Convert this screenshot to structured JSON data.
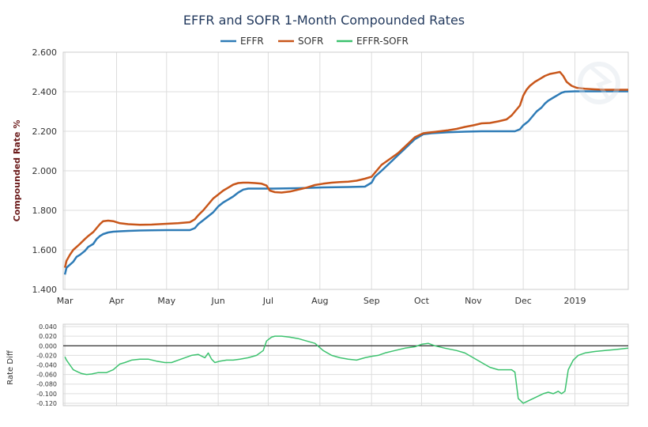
{
  "chart_data": [
    {
      "type": "line",
      "title": "EFFR and SOFR 1-Month Compounded Rates",
      "ylabel": "Compounded Rate %",
      "xlabel": "",
      "ylim": [
        1.4,
        2.6
      ],
      "yticks": [
        "1.400",
        "1.600",
        "1.800",
        "2.000",
        "2.200",
        "2.400",
        "2.600"
      ],
      "ytick_values": [
        1.4,
        1.6,
        1.8,
        2.0,
        2.2,
        2.4,
        2.6
      ],
      "xtick_labels": [
        "Mar",
        "Apr",
        "May",
        "Jun",
        "Jul",
        "Aug",
        "Sep",
        "Oct",
        "Nov",
        "Dec",
        "2019"
      ],
      "xtick_days": [
        0,
        31,
        61,
        92,
        122,
        153,
        184,
        214,
        245,
        275,
        306
      ],
      "xlim_days": [
        -1,
        338
      ],
      "legend_position": "top-center",
      "series": [
        {
          "name": "EFFR",
          "color": "#2e7bb6",
          "x": [
            0,
            1,
            3,
            5,
            7,
            9,
            12,
            14,
            17,
            19,
            21,
            23,
            26,
            29,
            33,
            38,
            45,
            52,
            61,
            68,
            75,
            78,
            80,
            83,
            86,
            89,
            92,
            95,
            98,
            101,
            104,
            107,
            110,
            114,
            118,
            121,
            125,
            140,
            155,
            170,
            180,
            184,
            186,
            190,
            195,
            200,
            205,
            210,
            215,
            220,
            230,
            240,
            250,
            260,
            268,
            270,
            273,
            275,
            278,
            281,
            283,
            286,
            288,
            290,
            293,
            296,
            298,
            300,
            306,
            320,
            338
          ],
          "y": [
            1.475,
            1.51,
            1.525,
            1.54,
            1.565,
            1.575,
            1.595,
            1.615,
            1.63,
            1.655,
            1.67,
            1.68,
            1.688,
            1.692,
            1.694,
            1.696,
            1.698,
            1.699,
            1.7,
            1.7,
            1.7,
            1.71,
            1.73,
            1.75,
            1.77,
            1.79,
            1.82,
            1.84,
            1.855,
            1.87,
            1.89,
            1.905,
            1.91,
            1.91,
            1.91,
            1.91,
            1.91,
            1.912,
            1.916,
            1.918,
            1.92,
            1.94,
            1.97,
            2.0,
            2.04,
            2.08,
            2.12,
            2.16,
            2.185,
            2.19,
            2.195,
            2.198,
            2.2,
            2.2,
            2.2,
            2.2,
            2.21,
            2.23,
            2.25,
            2.28,
            2.3,
            2.32,
            2.34,
            2.355,
            2.37,
            2.385,
            2.395,
            2.4,
            2.402,
            2.402,
            2.402
          ]
        },
        {
          "name": "SOFR",
          "color": "#c8561a",
          "x": [
            0,
            1,
            3,
            5,
            7,
            9,
            12,
            14,
            17,
            19,
            21,
            23,
            26,
            29,
            33,
            38,
            45,
            52,
            61,
            68,
            75,
            78,
            80,
            83,
            86,
            89,
            92,
            95,
            98,
            101,
            104,
            107,
            110,
            114,
            118,
            121,
            123,
            126,
            130,
            135,
            140,
            145,
            150,
            155,
            160,
            165,
            170,
            175,
            180,
            184,
            186,
            190,
            195,
            200,
            205,
            210,
            215,
            220,
            225,
            230,
            235,
            240,
            245,
            250,
            255,
            260,
            265,
            268,
            270,
            273,
            275,
            277,
            279,
            282,
            285,
            288,
            291,
            294,
            297,
            299,
            301,
            304,
            307,
            312,
            318,
            324,
            330,
            338
          ],
          "y": [
            1.51,
            1.545,
            1.575,
            1.6,
            1.615,
            1.63,
            1.655,
            1.67,
            1.69,
            1.71,
            1.73,
            1.745,
            1.748,
            1.745,
            1.735,
            1.73,
            1.727,
            1.728,
            1.732,
            1.735,
            1.74,
            1.755,
            1.775,
            1.8,
            1.83,
            1.86,
            1.88,
            1.9,
            1.915,
            1.93,
            1.938,
            1.94,
            1.94,
            1.938,
            1.935,
            1.925,
            1.9,
            1.892,
            1.89,
            1.895,
            1.905,
            1.915,
            1.928,
            1.935,
            1.94,
            1.943,
            1.945,
            1.95,
            1.96,
            1.97,
            1.99,
            2.03,
            2.06,
            2.09,
            2.13,
            2.17,
            2.19,
            2.195,
            2.2,
            2.205,
            2.212,
            2.222,
            2.23,
            2.24,
            2.242,
            2.25,
            2.26,
            2.28,
            2.3,
            2.33,
            2.38,
            2.41,
            2.43,
            2.45,
            2.465,
            2.48,
            2.49,
            2.495,
            2.5,
            2.48,
            2.45,
            2.43,
            2.42,
            2.415,
            2.412,
            2.41,
            2.41,
            2.41
          ]
        }
      ]
    },
    {
      "type": "line",
      "title": "",
      "ylabel": "Rate Diff",
      "ylim": [
        -0.125,
        0.045
      ],
      "yticks": [
        "0.040",
        "0.020",
        "0.000",
        "-0.020",
        "-0.040",
        "-0.060",
        "-0.080",
        "-0.100",
        "-0.120"
      ],
      "ytick_values": [
        0.04,
        0.02,
        0.0,
        -0.02,
        -0.04,
        -0.06,
        -0.08,
        -0.1,
        -0.12
      ],
      "zero_line": true,
      "series": [
        {
          "name": "EFFR-SOFR",
          "color": "#3cc26e",
          "x": [
            0,
            1,
            3,
            5,
            8,
            10,
            13,
            16,
            20,
            25,
            29,
            33,
            36,
            40,
            45,
            50,
            55,
            60,
            64,
            68,
            72,
            76,
            80,
            84,
            86,
            88,
            90,
            93,
            97,
            101,
            105,
            110,
            115,
            119,
            121,
            124,
            126,
            130,
            135,
            140,
            145,
            150,
            155,
            160,
            165,
            170,
            175,
            180,
            184,
            188,
            192,
            198,
            204,
            210,
            214,
            218,
            222,
            228,
            235,
            240,
            245,
            250,
            255,
            260,
            265,
            268,
            270,
            272,
            275,
            278,
            281,
            284,
            287,
            290,
            293,
            296,
            298,
            300,
            302,
            305,
            308,
            312,
            318,
            324,
            330,
            338
          ],
          "y": [
            -0.023,
            -0.03,
            -0.04,
            -0.05,
            -0.055,
            -0.058,
            -0.06,
            -0.059,
            -0.056,
            -0.056,
            -0.05,
            -0.038,
            -0.035,
            -0.03,
            -0.028,
            -0.028,
            -0.032,
            -0.035,
            -0.035,
            -0.03,
            -0.025,
            -0.02,
            -0.018,
            -0.025,
            -0.015,
            -0.028,
            -0.035,
            -0.032,
            -0.03,
            -0.03,
            -0.028,
            -0.025,
            -0.02,
            -0.01,
            0.01,
            0.018,
            0.02,
            0.02,
            0.018,
            0.015,
            0.01,
            0.005,
            -0.01,
            -0.02,
            -0.025,
            -0.028,
            -0.03,
            -0.025,
            -0.022,
            -0.02,
            -0.015,
            -0.01,
            -0.005,
            -0.002,
            0.003,
            0.005,
            0.0,
            -0.005,
            -0.01,
            -0.015,
            -0.025,
            -0.035,
            -0.045,
            -0.05,
            -0.05,
            -0.05,
            -0.055,
            -0.11,
            -0.12,
            -0.115,
            -0.11,
            -0.105,
            -0.1,
            -0.097,
            -0.1,
            -0.095,
            -0.1,
            -0.095,
            -0.05,
            -0.03,
            -0.02,
            -0.015,
            -0.012,
            -0.01,
            -0.008,
            -0.005
          ]
        }
      ]
    }
  ]
}
